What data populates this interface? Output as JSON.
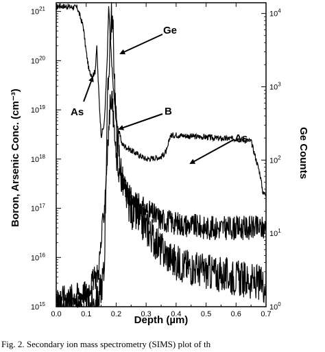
{
  "chart_data": {
    "type": "line",
    "xlabel": "Depth (µm)",
    "ylabel_left": "Boron, Arsenic Conc. (cm⁻³)",
    "ylabel_right": "Ge Counts",
    "xlim": [
      0,
      0.7
    ],
    "ylim_left": [
      1000000000000000.0,
      1.5e+21
    ],
    "ylim_right": [
      1,
      14000
    ],
    "yscale": "log",
    "x_ticks": [
      "0.0",
      "0.1",
      "0.2",
      "0.3",
      "0.4",
      "0.5",
      "0.6",
      "0.7"
    ],
    "y_left_ticks": [
      {
        "mant": "10",
        "exp": "15"
      },
      {
        "mant": "10",
        "exp": "16"
      },
      {
        "mant": "10",
        "exp": "17"
      },
      {
        "mant": "10",
        "exp": "18"
      },
      {
        "mant": "10",
        "exp": "19"
      },
      {
        "mant": "10",
        "exp": "20"
      },
      {
        "mant": "10",
        "exp": "21"
      }
    ],
    "y_right_ticks": [
      {
        "mant": "10",
        "exp": "0"
      },
      {
        "mant": "10",
        "exp": "1"
      },
      {
        "mant": "10",
        "exp": "2"
      },
      {
        "mant": "10",
        "exp": "3"
      },
      {
        "mant": "10",
        "exp": "4"
      }
    ],
    "annotations": [
      "As",
      "Ge",
      "B",
      "As"
    ],
    "series": [
      {
        "label": "As",
        "axis": "left",
        "x": [
          0.0,
          0.01,
          0.04,
          0.07,
          0.09,
          0.1,
          0.11,
          0.12,
          0.13,
          0.135,
          0.14,
          0.145,
          0.15,
          0.16,
          0.165,
          0.17,
          0.175,
          0.18,
          0.19,
          0.2,
          0.22,
          0.25,
          0.3,
          0.35,
          0.37,
          0.38,
          0.4,
          0.45,
          0.5,
          0.55,
          0.6,
          0.65,
          0.68,
          0.69,
          0.7
        ],
        "y": [
          1.2e+21,
          1.3e+21,
          1.25e+21,
          1.2e+21,
          5e+20,
          1.5e+20,
          6e+19,
          5e+19,
          6e+19,
          2e+20,
          4e+19,
          1e+19,
          3e+18,
          5e+18,
          2e+19,
          1e+20,
          1.3e+21,
          3e+20,
          3e+19,
          6e+18,
          2e+18,
          1.5e+18,
          1e+18,
          1.1e+18,
          1.5e+18,
          3e+18,
          3.1e+18,
          2.9e+18,
          2.8e+18,
          2.6e+18,
          2.6e+18,
          2.3e+18,
          5e+17,
          2e+17,
          2e+17
        ]
      },
      {
        "label": "Ge",
        "axis": "right",
        "x": [
          0.0,
          0.1,
          0.14,
          0.16,
          0.17,
          0.18,
          0.185,
          0.19,
          0.2,
          0.22,
          0.25,
          0.3,
          0.35,
          0.4,
          0.5,
          0.6,
          0.7
        ],
        "y": [
          1,
          1,
          1.2,
          3,
          400,
          5000,
          10000,
          5000,
          300,
          50,
          20,
          12,
          6,
          4,
          3,
          2.5,
          2
        ]
      },
      {
        "label": "B",
        "axis": "left",
        "x": [
          0.0,
          0.1,
          0.14,
          0.15,
          0.16,
          0.17,
          0.18,
          0.185,
          0.19,
          0.2,
          0.22,
          0.25,
          0.3,
          0.35,
          0.4,
          0.5,
          0.6,
          0.7
        ],
        "y": [
          1500000000000000.0,
          2000000000000000.0,
          5000000000000000.0,
          2e+16,
          1e+17,
          1e+18,
          1.3e+19,
          2e+19,
          8e+18,
          1e+18,
          3e+17,
          1.5e+17,
          9e+16,
          6e+16,
          5e+16,
          4e+16,
          4e+16,
          4e+16
        ]
      }
    ]
  },
  "caption": "Fig. 2.  Secondary ion mass spectrometry (SIMS) plot of th"
}
